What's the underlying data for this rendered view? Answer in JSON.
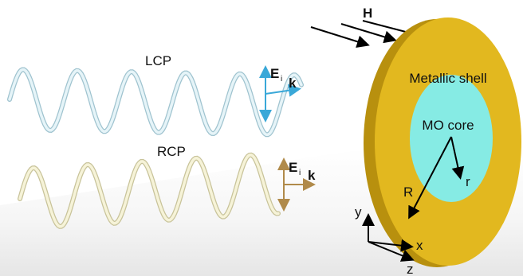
{
  "labels": {
    "lcp": "LCP",
    "rcp": "RCP",
    "h": "H",
    "lcp_field": {
      "e": "E",
      "sub": "i",
      "k": "k"
    },
    "rcp_field": {
      "e": "E",
      "sub": "i",
      "k": "k"
    },
    "shell": "Metallic shell",
    "core": "MO core",
    "r_inner": "r",
    "r_outer": "R",
    "axes": {
      "x": "x",
      "y": "y",
      "z": "z"
    }
  }
}
